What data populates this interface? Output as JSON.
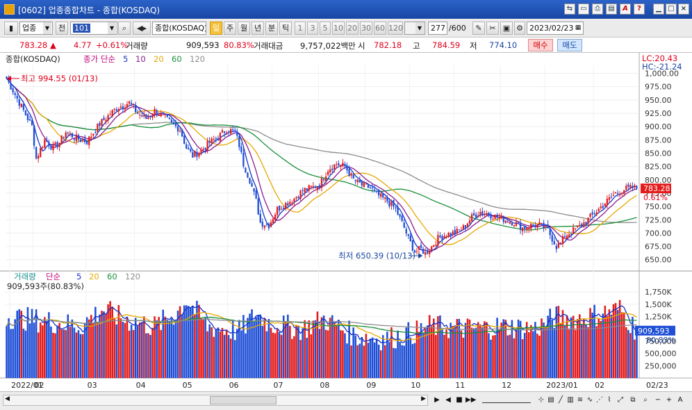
{
  "window": {
    "title": "[0602] 업종종합차트 - 종합(KOSDAQ)"
  },
  "toolbar": {
    "market_select": "업종",
    "all_label": "전",
    "code_value": "101",
    "index_name": "종합(KOSDAQ)",
    "periods": [
      "일",
      "주",
      "월",
      "년",
      "분",
      "틱"
    ],
    "active_period": "일",
    "minute_options": [
      "1",
      "3",
      "5",
      "10",
      "20",
      "30",
      "60",
      "120"
    ],
    "count_value": "277",
    "count_total": "/600",
    "date_value": "2023/02/23"
  },
  "quote": {
    "price": "783.28",
    "change": "4.77",
    "change_pct": "+0.61%",
    "volume_label": "거래량",
    "volume": "909,593",
    "volume_ratio": "80.83%",
    "amount_label": "거래대금",
    "amount": "9,757,022백만",
    "open_label": "시",
    "open": "782.18",
    "high_label": "고",
    "high": "784.59",
    "low_label": "저",
    "low": "774.10",
    "buy_label": "매수",
    "sell_label": "매도"
  },
  "status": {
    "scroll_position": 0.58
  },
  "chart_data": [
    {
      "type": "candlestick",
      "title": "종합(KOSDAQ)",
      "legend": [
        {
          "label": "종가 단순",
          "color": "#c0007a"
        },
        {
          "label": "5",
          "color": "#1432c8"
        },
        {
          "label": "10",
          "color": "#8b1a8b"
        },
        {
          "label": "20",
          "color": "#e6a800"
        },
        {
          "label": "60",
          "color": "#1a8f3a"
        },
        {
          "label": "120",
          "color": "#8c8c8c"
        }
      ],
      "lc_label": "LC:20.43",
      "hc_label": "HC:-21.24",
      "ylim": [
        634,
        1015
      ],
      "y_ticks": [
        "1,000.00",
        "975.00",
        "950.00",
        "925.00",
        "900.00",
        "875.00",
        "850.00",
        "825.00",
        "800.00",
        "775.00",
        "750.00",
        "725.00",
        "700.00",
        "675.00",
        "650.00"
      ],
      "y_tick_values": [
        1000,
        975,
        950,
        925,
        900,
        875,
        850,
        825,
        800,
        775,
        750,
        725,
        700,
        675,
        650
      ],
      "current_price_label": "783.28",
      "current_pct_label": "0.61%",
      "max_annotation": "최고 994.55 (01/13)",
      "min_annotation": "최저 650.39 (10/13)",
      "x_labels": [
        {
          "label": "2022/01",
          "day": 2
        },
        {
          "label": "02",
          "day": 13
        },
        {
          "label": "03",
          "day": 38
        },
        {
          "label": "04",
          "day": 61
        },
        {
          "label": "05",
          "day": 83
        },
        {
          "label": "06",
          "day": 105
        },
        {
          "label": "07",
          "day": 126
        },
        {
          "label": "08",
          "day": 148
        },
        {
          "label": "09",
          "day": 170
        },
        {
          "label": "10",
          "day": 191
        },
        {
          "label": "11",
          "day": 212
        },
        {
          "label": "12",
          "day": 234
        },
        {
          "label": "2023/01",
          "day": 255
        },
        {
          "label": "02",
          "day": 278
        },
        {
          "label": "02/23",
          "day": 312
        }
      ],
      "days": 299,
      "close_anchors": [
        [
          0,
          990
        ],
        [
          4,
          960
        ],
        [
          8,
          930
        ],
        [
          12,
          900
        ],
        [
          14,
          840
        ],
        [
          18,
          875
        ],
        [
          22,
          860
        ],
        [
          25,
          870
        ],
        [
          28,
          890
        ],
        [
          32,
          880
        ],
        [
          35,
          875
        ],
        [
          38,
          872
        ],
        [
          44,
          905
        ],
        [
          48,
          920
        ],
        [
          52,
          935
        ],
        [
          55,
          940
        ],
        [
          58,
          945
        ],
        [
          62,
          925
        ],
        [
          66,
          915
        ],
        [
          70,
          930
        ],
        [
          74,
          920
        ],
        [
          78,
          905
        ],
        [
          82,
          895
        ],
        [
          85,
          860
        ],
        [
          88,
          845
        ],
        [
          92,
          855
        ],
        [
          96,
          870
        ],
        [
          100,
          880
        ],
        [
          104,
          895
        ],
        [
          108,
          890
        ],
        [
          110,
          865
        ],
        [
          112,
          830
        ],
        [
          115,
          800
        ],
        [
          118,
          760
        ],
        [
          120,
          720
        ],
        [
          124,
          715
        ],
        [
          128,
          745
        ],
        [
          132,
          755
        ],
        [
          136,
          765
        ],
        [
          140,
          780
        ],
        [
          144,
          785
        ],
        [
          148,
          790
        ],
        [
          152,
          820
        ],
        [
          156,
          830
        ],
        [
          160,
          825
        ],
        [
          164,
          800
        ],
        [
          168,
          790
        ],
        [
          172,
          785
        ],
        [
          176,
          770
        ],
        [
          180,
          760
        ],
        [
          184,
          745
        ],
        [
          188,
          710
        ],
        [
          190,
          690
        ],
        [
          193,
          665
        ],
        [
          196,
          670
        ],
        [
          198,
          662
        ],
        [
          201,
          675
        ],
        [
          204,
          690
        ],
        [
          208,
          698
        ],
        [
          212,
          700
        ],
        [
          216,
          710
        ],
        [
          220,
          730
        ],
        [
          224,
          740
        ],
        [
          228,
          735
        ],
        [
          232,
          730
        ],
        [
          236,
          725
        ],
        [
          240,
          720
        ],
        [
          244,
          710
        ],
        [
          248,
          715
        ],
        [
          252,
          715
        ],
        [
          256,
          705
        ],
        [
          258,
          690
        ],
        [
          260,
          675
        ],
        [
          262,
          680
        ],
        [
          264,
          695
        ],
        [
          268,
          705
        ],
        [
          272,
          715
        ],
        [
          276,
          730
        ],
        [
          280,
          745
        ],
        [
          284,
          760
        ],
        [
          288,
          775
        ],
        [
          292,
          782
        ],
        [
          296,
          785
        ],
        [
          299,
          783.28
        ]
      ],
      "ma": [
        {
          "period": 5,
          "color": "#1432c8"
        },
        {
          "period": 10,
          "color": "#8b1a8b"
        },
        {
          "period": 20,
          "color": "#e6a800"
        },
        {
          "period": 60,
          "color": "#1a8f3a"
        },
        {
          "period": 120,
          "color": "#8c8c8c"
        }
      ]
    },
    {
      "type": "bar",
      "title": "거래량",
      "legend": [
        {
          "label": "단순",
          "color": "#c0007a"
        },
        {
          "label": "5",
          "color": "#1432c8"
        },
        {
          "label": "20",
          "color": "#e6a800"
        },
        {
          "label": "60",
          "color": "#1a8f3a"
        },
        {
          "label": "120",
          "color": "#8c8c8c"
        }
      ],
      "value_label": "909,593주(80.83%)",
      "ylim": [
        0,
        1950
      ],
      "y_ticks": [
        "1,750K",
        "1,500K",
        "1,250K",
        "1,000K",
        "750,000",
        "500,000",
        "250,000"
      ],
      "y_tick_values": [
        1750,
        1500,
        1250,
        1000,
        750,
        500,
        250
      ],
      "current_value_label": "909,593",
      "current_pct_label": "80.83%",
      "volume_anchors": [
        [
          0,
          1250
        ],
        [
          20,
          1150
        ],
        [
          35,
          1050
        ],
        [
          45,
          1400
        ],
        [
          55,
          1200
        ],
        [
          70,
          1050
        ],
        [
          80,
          1300
        ],
        [
          85,
          1600
        ],
        [
          95,
          1050
        ],
        [
          110,
          950
        ],
        [
          118,
          1300
        ],
        [
          125,
          1100
        ],
        [
          140,
          1000
        ],
        [
          150,
          1200
        ],
        [
          165,
          850
        ],
        [
          180,
          800
        ],
        [
          195,
          950
        ],
        [
          200,
          1050
        ],
        [
          220,
          1000
        ],
        [
          235,
          1050
        ],
        [
          250,
          1000
        ],
        [
          260,
          1250
        ],
        [
          270,
          1200
        ],
        [
          280,
          1300
        ],
        [
          290,
          1400
        ],
        [
          299,
          909.593
        ]
      ]
    }
  ]
}
